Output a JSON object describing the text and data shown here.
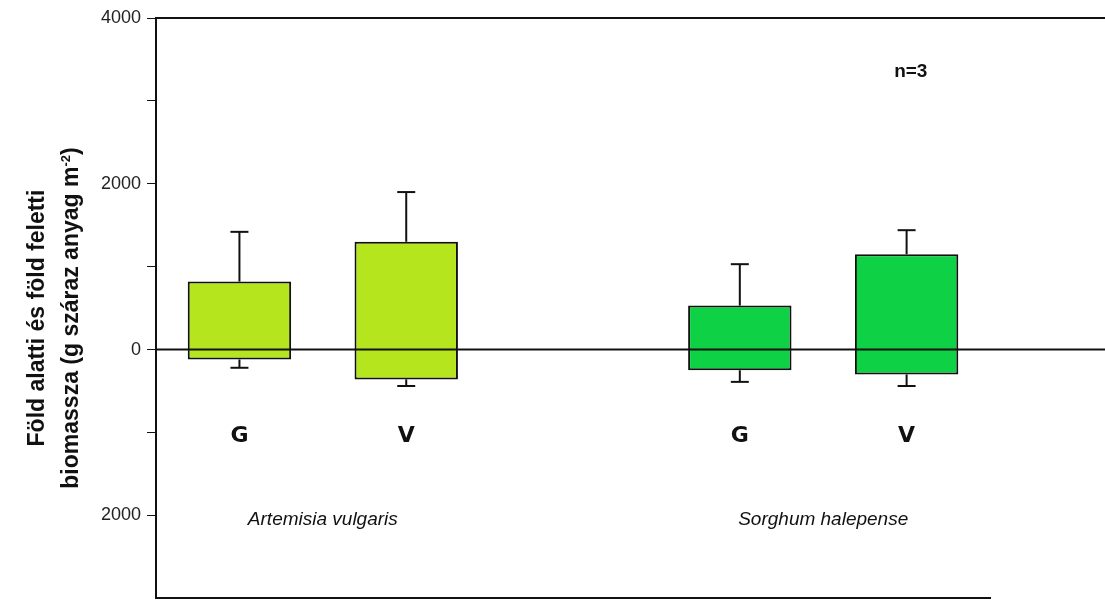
{
  "chart_data": {
    "type": "bar",
    "stacked": true,
    "ylabel": "Föld alatti és föld feletti biomassza (g száraz anyag m$^{-2}$)",
    "categories": [
      "G",
      "V",
      null,
      "G",
      "V"
    ],
    "series": [
      {
        "colors": [
          "#b5e61d",
          "#b5e61d",
          "#b5e61d",
          "#0ed145",
          "#0ed145"
        ],
        "values": [
          820,
          1300,
          null,
          530,
          1150
        ],
        "errors": [
          [
            820,
            1420
          ],
          [
            1300,
            1900
          ],
          null,
          [
            530,
            1030
          ],
          [
            1150,
            1440
          ]
        ]
      },
      {
        "colors": [
          "#b5e61d",
          "#b5e61d",
          "#b5e61d",
          "#0ed145",
          "#0ed145"
        ],
        "values": [
          -120,
          -360,
          null,
          -250,
          -300
        ],
        "errors": [
          [
            -220,
            -120
          ],
          [
            -440,
            -360
          ],
          null,
          [
            -390,
            -250
          ],
          [
            -440,
            -300
          ]
        ]
      }
    ],
    "ylim": [
      -3000,
      4000
    ],
    "yticks": [
      4000,
      {
        "value": 3000,
        "label": null
      },
      2000,
      {
        "value": 1000,
        "label": null
      },
      0,
      {
        "value": -1000,
        "label": null
      },
      {
        "value": -2000,
        "label": "2000"
      }
    ],
    "grid": false,
    "legend": false,
    "ref_lines": [
      {
        "axis": "y",
        "value": 0,
        "color": "#111111"
      }
    ],
    "annotations": [
      "n=3",
      "Artemisia vulgaris",
      "Sorghum halepense"
    ]
  }
}
